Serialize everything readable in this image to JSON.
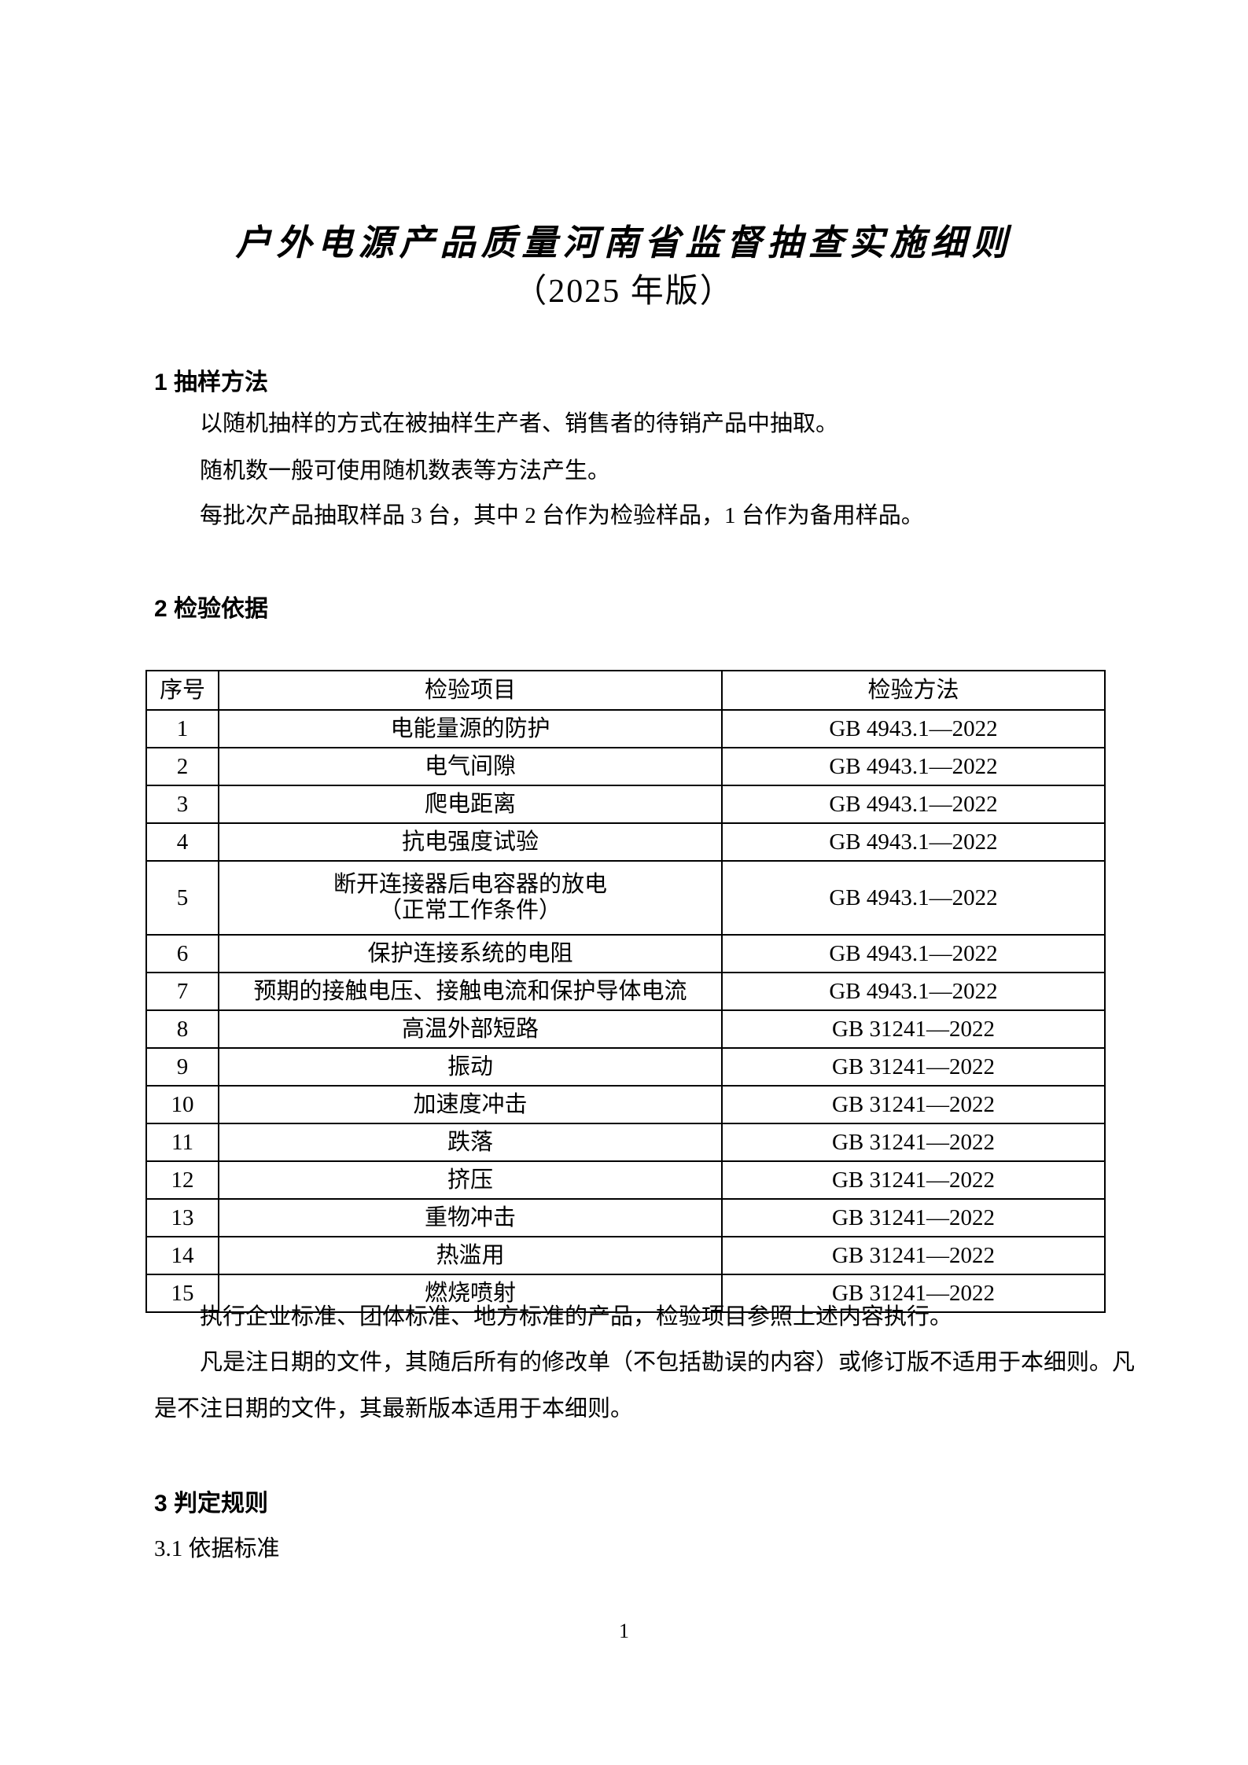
{
  "doc": {
    "title": "户外电源产品质量河南省监督抽查实施细则",
    "subtitle": "（2025 年版）",
    "page_number": "1"
  },
  "sections": {
    "sampling": {
      "heading": "1 抽样方法",
      "paragraphs": [
        "以随机抽样的方式在被抽样生产者、销售者的待销产品中抽取。",
        "随机数一般可使用随机数表等方法产生。",
        "每批次产品抽取样品 3 台，其中 2 台作为检验样品，1 台作为备用样品。"
      ]
    },
    "basis": {
      "heading": "2 检验依据",
      "table": {
        "headers": [
          "序号",
          "检验项目",
          "检验方法"
        ],
        "rows": [
          {
            "no": "1",
            "item": "电能量源的防护",
            "method": "GB 4943.1—2022",
            "tall": false
          },
          {
            "no": "2",
            "item": "电气间隙",
            "method": "GB 4943.1—2022",
            "tall": false
          },
          {
            "no": "3",
            "item": "爬电距离",
            "method": "GB 4943.1—2022",
            "tall": false
          },
          {
            "no": "4",
            "item": "抗电强度试验",
            "method": "GB 4943.1—2022",
            "tall": false
          },
          {
            "no": "5",
            "item": "断开连接器后电容器的放电\n（正常工作条件）",
            "method": "GB 4943.1—2022",
            "tall": true
          },
          {
            "no": "6",
            "item": "保护连接系统的电阻",
            "method": "GB 4943.1—2022",
            "tall": false
          },
          {
            "no": "7",
            "item": "预期的接触电压、接触电流和保护导体电流",
            "method": "GB 4943.1—2022",
            "tall": false
          },
          {
            "no": "8",
            "item": "高温外部短路",
            "method": "GB 31241—2022",
            "tall": false
          },
          {
            "no": "9",
            "item": "振动",
            "method": "GB 31241—2022",
            "tall": false
          },
          {
            "no": "10",
            "item": "加速度冲击",
            "method": "GB 31241—2022",
            "tall": false
          },
          {
            "no": "11",
            "item": "跌落",
            "method": "GB 31241—2022",
            "tall": false
          },
          {
            "no": "12",
            "item": "挤压",
            "method": "GB 31241—2022",
            "tall": false
          },
          {
            "no": "13",
            "item": "重物冲击",
            "method": "GB 31241—2022",
            "tall": false
          },
          {
            "no": "14",
            "item": "热滥用",
            "method": "GB 31241—2022",
            "tall": false
          },
          {
            "no": "15",
            "item": "燃烧喷射",
            "method": "GB 31241—2022",
            "tall": false
          }
        ]
      },
      "notes": [
        "执行企业标准、团体标准、地方标准的产品，检验项目参照上述内容执行。",
        "凡是注日期的文件，其随后所有的修改单（不包括勘误的内容）或修订版不适用于本细则。凡",
        "是不注日期的文件，其最新版本适用于本细则。"
      ]
    },
    "judgement": {
      "heading": "3 判定规则",
      "subheading": "3.1 依据标准"
    }
  }
}
